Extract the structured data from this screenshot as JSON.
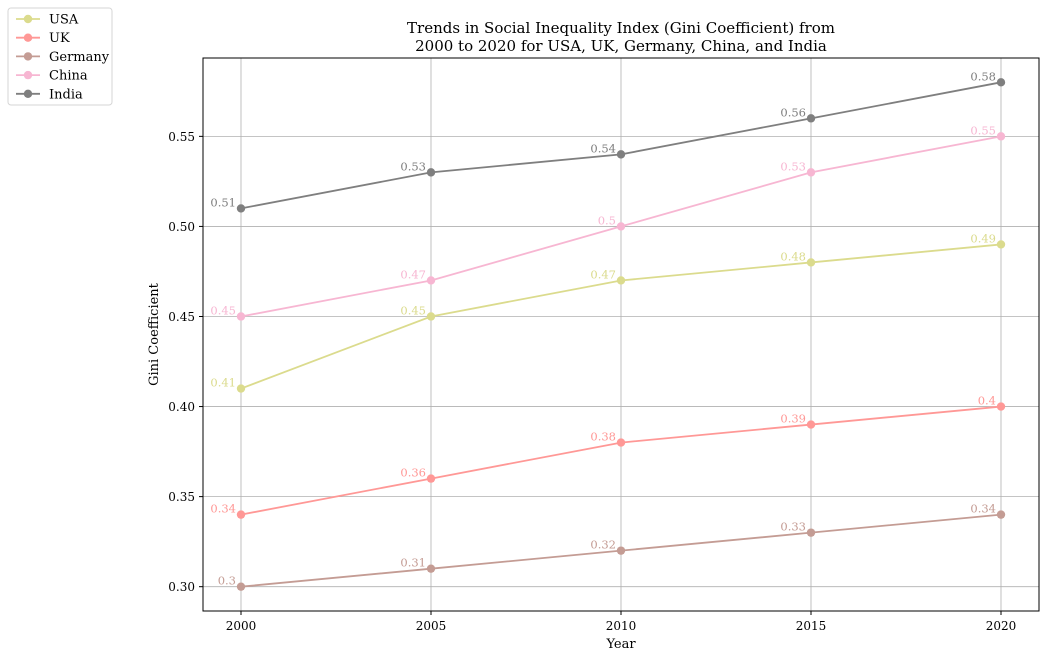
{
  "chart_data": {
    "type": "line",
    "title_lines": [
      "Trends in Social Inequality Index (Gini Coefficient) from",
      "2000 to 2020 for USA, UK, Germany, China, and India"
    ],
    "xlabel": "Year",
    "ylabel": "Gini Coefficient",
    "x": [
      2000,
      2005,
      2010,
      2015,
      2020
    ],
    "x_tick_labels": [
      "2000",
      "2005",
      "2010",
      "2015",
      "2020"
    ],
    "y_ticks": [
      0.3,
      0.35,
      0.4,
      0.45,
      0.5,
      0.55
    ],
    "y_tick_labels": [
      "0.30",
      "0.35",
      "0.40",
      "0.45",
      "0.50",
      "0.55"
    ],
    "xlim": [
      1999,
      2021
    ],
    "ylim": [
      0.2865,
      0.5935
    ],
    "grid": true,
    "legend_position": "outside-top-left",
    "series": [
      {
        "name": "USA",
        "color": "#dbdb8d",
        "values": [
          0.41,
          0.45,
          0.47,
          0.48,
          0.49
        ],
        "labels": [
          "0.41",
          "0.45",
          "0.47",
          "0.48",
          "0.49"
        ]
      },
      {
        "name": "UK",
        "color": "#ff9896",
        "values": [
          0.34,
          0.36,
          0.38,
          0.39,
          0.4
        ],
        "labels": [
          "0.34",
          "0.36",
          "0.38",
          "0.39",
          "0.4"
        ]
      },
      {
        "name": "Germany",
        "color": "#c49c94",
        "values": [
          0.3,
          0.31,
          0.32,
          0.33,
          0.34
        ],
        "labels": [
          "0.3",
          "0.31",
          "0.32",
          "0.33",
          "0.34"
        ]
      },
      {
        "name": "China",
        "color": "#f7b6d2",
        "values": [
          0.45,
          0.47,
          0.5,
          0.53,
          0.55
        ],
        "labels": [
          "0.45",
          "0.47",
          "0.5",
          "0.53",
          "0.55"
        ]
      },
      {
        "name": "India",
        "color": "#7f7f7f",
        "values": [
          0.51,
          0.53,
          0.54,
          0.56,
          0.58
        ],
        "labels": [
          "0.51",
          "0.53",
          "0.54",
          "0.56",
          "0.58"
        ]
      }
    ]
  }
}
